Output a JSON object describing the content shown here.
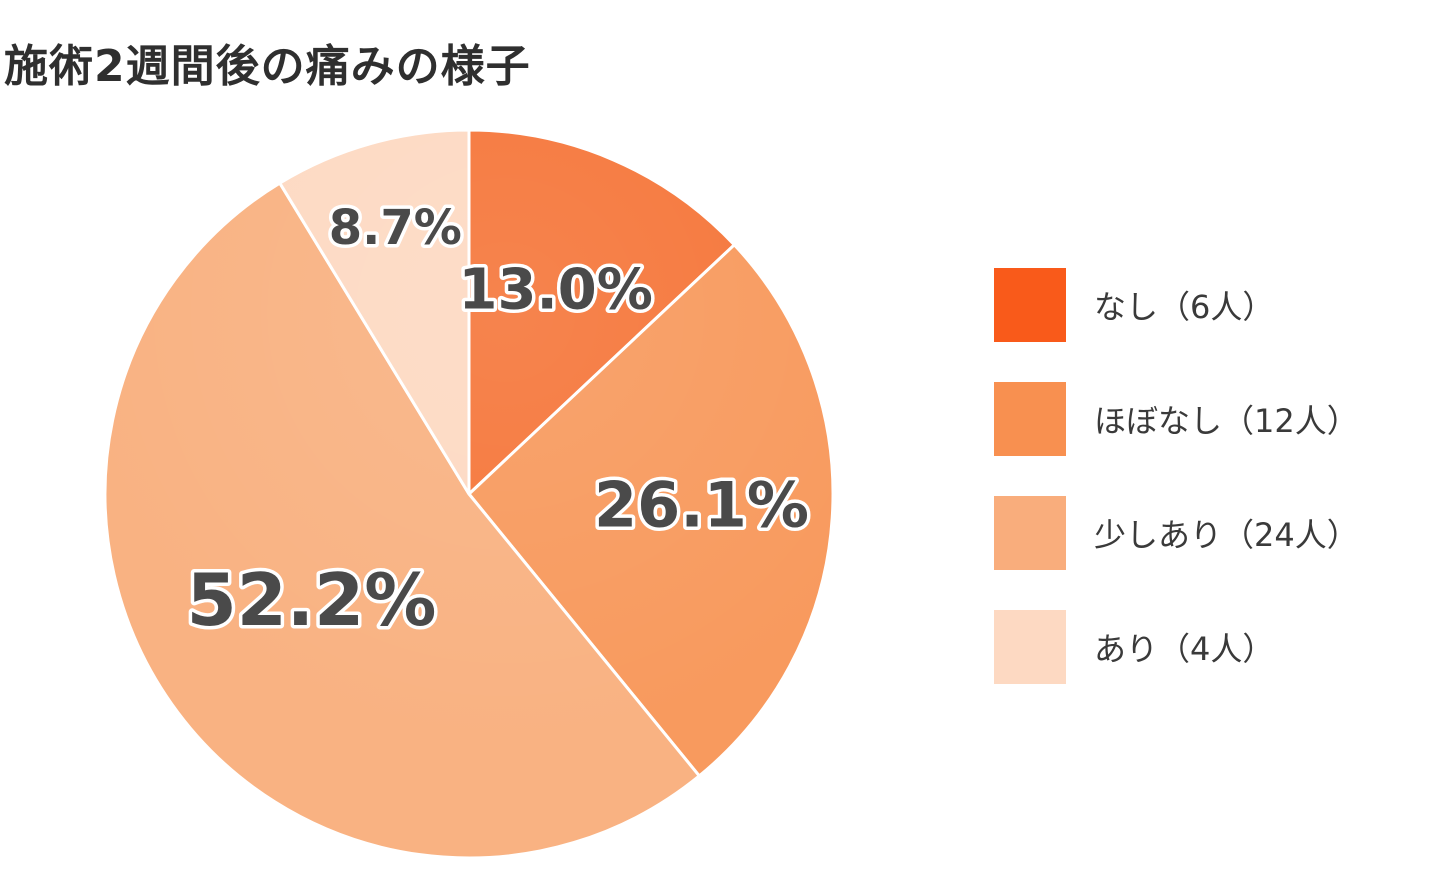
{
  "chart_data": {
    "type": "pie",
    "title": "施術2週間後の痛みの様子",
    "slices": [
      {
        "name": "なし（6人）",
        "value": 13.0,
        "label": "13.0%",
        "color": "#f5763a"
      },
      {
        "name": "ほぼなし（12人）",
        "value": 26.1,
        "label": "26.1%",
        "color": "#f89a5e"
      },
      {
        "name": "少しあり（24人）",
        "value": 52.2,
        "label": "52.2%",
        "color": "#f9b282"
      },
      {
        "name": "あり（4人）",
        "value": 8.7,
        "label": "8.7%",
        "color": "#fdd9c2"
      }
    ],
    "legend": [
      {
        "name": "なし（6人）",
        "color": "#f95a1a"
      },
      {
        "name": "ほぼなし（12人）",
        "color": "#f89050"
      },
      {
        "name": "少しあり（24人）",
        "color": "#f9ad7c"
      },
      {
        "name": "あり（4人）",
        "color": "#fdd9c2"
      }
    ],
    "legend_position": "right",
    "start": "top",
    "direction": "clockwise"
  }
}
